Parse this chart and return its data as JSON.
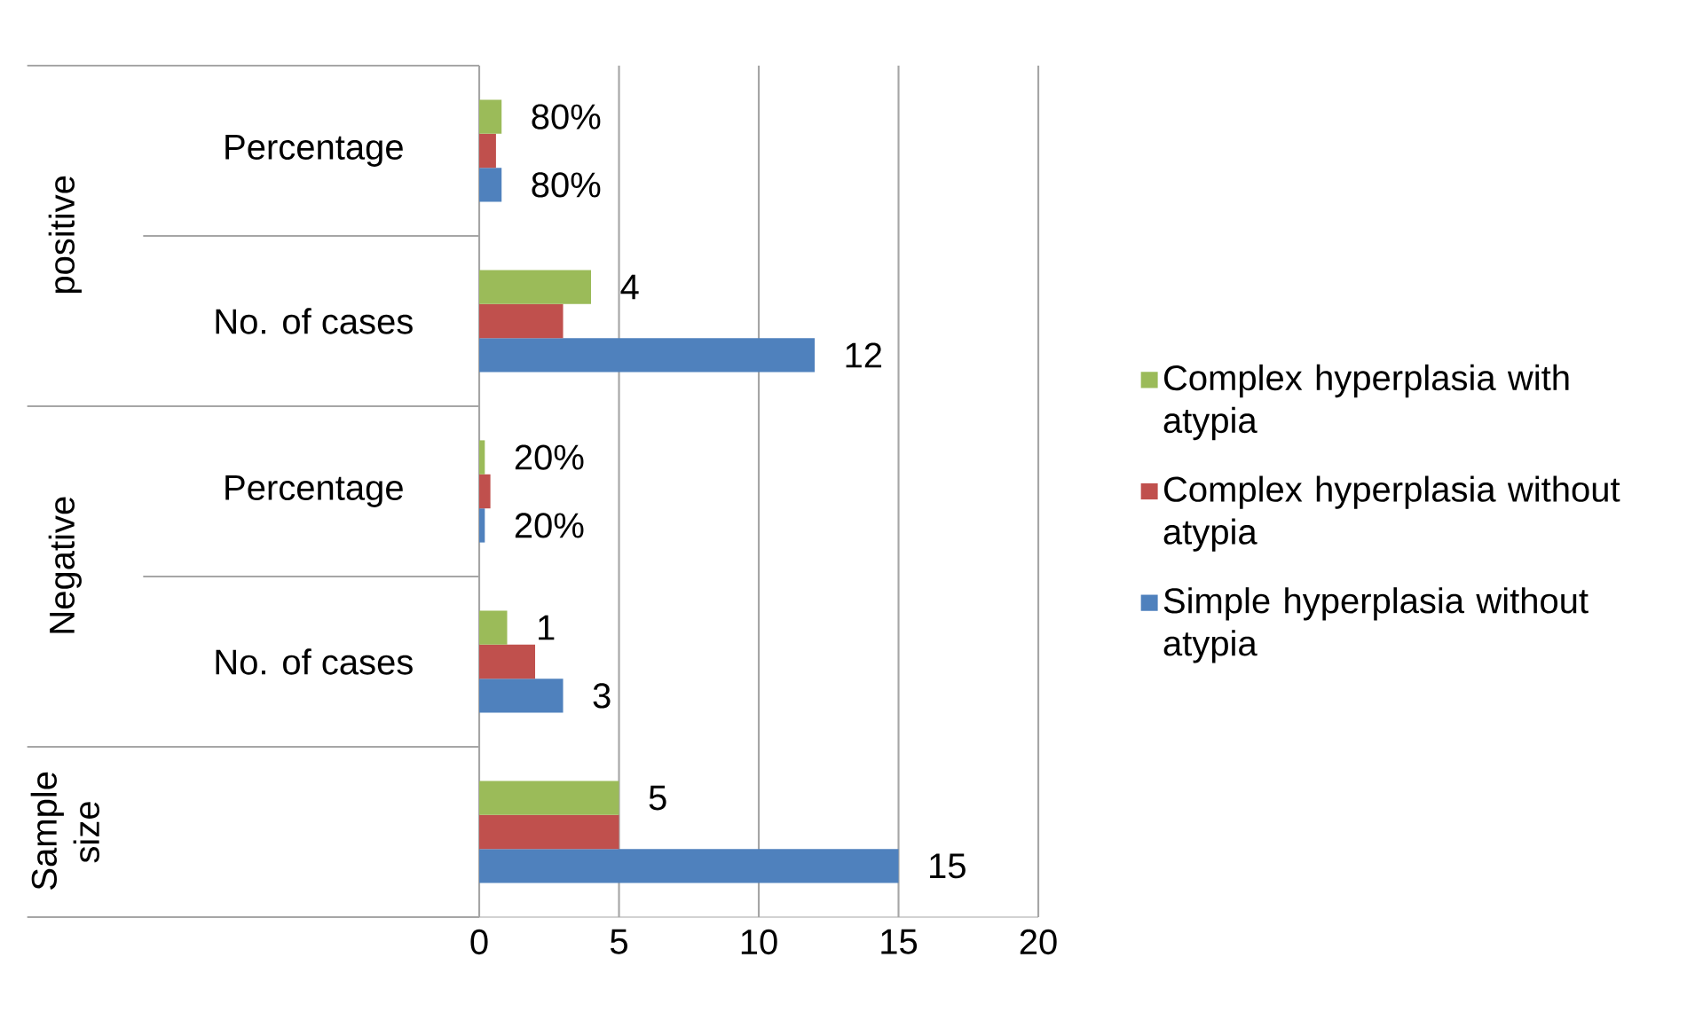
{
  "chart_data": {
    "type": "bar",
    "orientation": "horizontal",
    "categories": [
      "Percentage",
      "No. of cases",
      "Percentage",
      "No. of cases",
      null
    ],
    "annotations": [
      "positive",
      "Negative",
      "Sample size"
    ],
    "series": [
      {
        "name": "Simple hyperplasia without atypia",
        "color": "#4f81bd",
        "values": [
          0.8,
          12,
          0.2,
          3,
          15
        ],
        "value_labels": [
          "80%",
          "12",
          "20%",
          "3",
          "15"
        ]
      },
      {
        "name": "Complex hyperplasia without atypia",
        "color": "#c0504d",
        "values": [
          0.6,
          3,
          0.4,
          2,
          5
        ],
        "value_labels": [
          null,
          null,
          null,
          null,
          null
        ]
      },
      {
        "name": "Complex hyperplasia with atypia",
        "color": "#9bbb59",
        "values": [
          0.8,
          4,
          0.2,
          1,
          5
        ],
        "value_labels": [
          "80%",
          "4",
          "20%",
          "1",
          "5"
        ]
      }
    ],
    "xlim": [
      0,
      20
    ],
    "xticks": [
      0,
      5,
      10,
      15,
      20
    ],
    "grid": "x",
    "legend": "right"
  }
}
